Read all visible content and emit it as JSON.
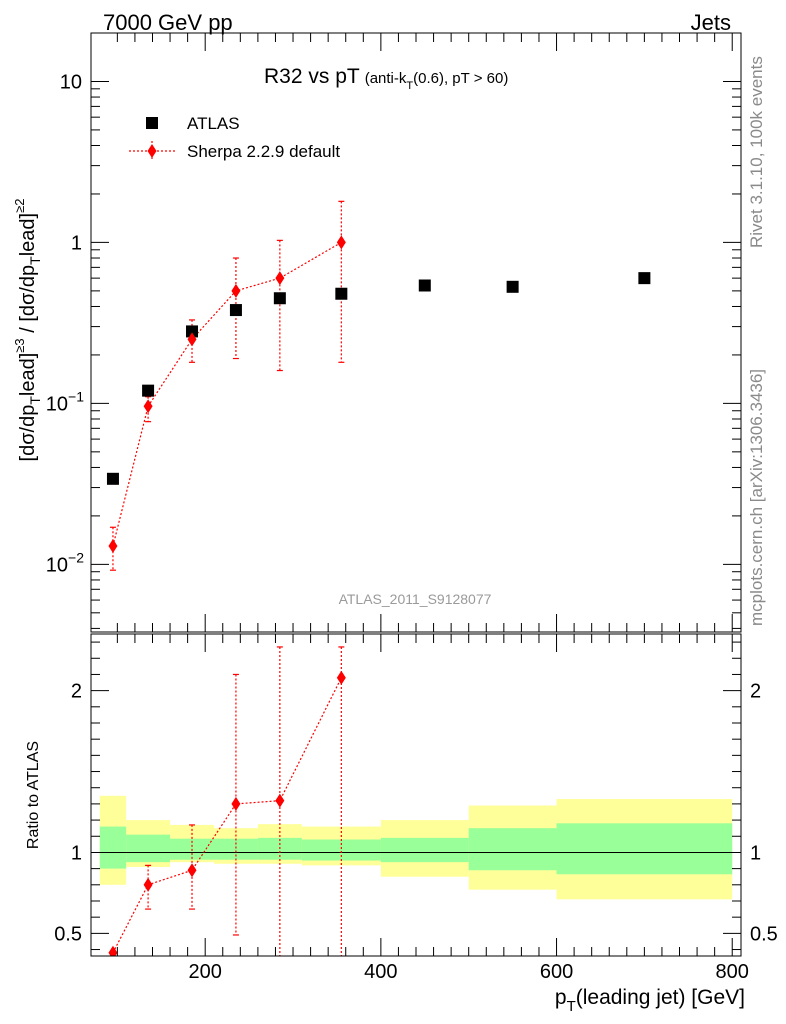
{
  "header": {
    "left": "7000 GeV pp",
    "right": "Jets"
  },
  "side_labels": {
    "rivet": "Rivet 3.1.10,  100k events",
    "mcplots": "mcplots.cern.ch [arXiv:1306.3436]"
  },
  "watermark": "ATLAS_2011_S9128077",
  "chart_data": [
    {
      "type": "scatter",
      "panel": "main",
      "title": "R32 vs pT",
      "title_suffix": "(anti-k_T(0.6), pT > 60)",
      "ylabel": "[dσ/dp_T^lead]^{≥3} / [dσ/dp_T^lead]^{≥2}",
      "yscale": "log",
      "xlim": [
        70,
        810
      ],
      "ylim": [
        0.0038,
        20
      ],
      "y_tick_labels": [
        "10^-2",
        "10^-1",
        "1",
        "10"
      ],
      "legend_position": "top-left",
      "series": [
        {
          "name": "ATLAS",
          "color": "#000000",
          "marker": "square",
          "x": [
            95,
            135,
            185,
            235,
            285,
            355,
            450,
            550,
            700
          ],
          "y": [
            0.034,
            0.12,
            0.28,
            0.38,
            0.45,
            0.48,
            0.54,
            0.53,
            0.6
          ]
        },
        {
          "name": "Sherpa 2.2.9 default",
          "color": "#ff0000",
          "marker": "diamond",
          "line": "dotted",
          "x": [
            95,
            135,
            185,
            235,
            285,
            355
          ],
          "y": [
            0.013,
            0.096,
            0.25,
            0.5,
            0.6,
            1.0
          ],
          "ylow": [
            0.0092,
            0.077,
            0.18,
            0.19,
            0.16,
            0.18
          ],
          "yhigh": [
            0.017,
            0.11,
            0.33,
            0.8,
            1.03,
            1.8
          ]
        }
      ]
    },
    {
      "type": "scatter",
      "panel": "ratio",
      "ylabel": "Ratio to ATLAS",
      "xlabel": "p_T(leading jet) [GeV]",
      "xlim": [
        70,
        810
      ],
      "ylim": [
        0.36,
        2.35
      ],
      "y_tick_labels": [
        "0.5",
        "1",
        "2"
      ],
      "x_tick_labels": [
        "200",
        "400",
        "600",
        "800"
      ],
      "reference_line": 1,
      "bands": {
        "edges": [
          80,
          110,
          160,
          210,
          260,
          310,
          400,
          500,
          600,
          800
        ],
        "inner": [
          [
            0.9,
            1.16
          ],
          [
            0.94,
            1.11
          ],
          [
            0.955,
            1.085
          ],
          [
            0.955,
            1.085
          ],
          [
            0.955,
            1.09
          ],
          [
            0.95,
            1.08
          ],
          [
            0.94,
            1.09
          ],
          [
            0.89,
            1.15
          ],
          [
            0.865,
            1.18
          ]
        ],
        "outer": [
          [
            0.8,
            1.35
          ],
          [
            0.91,
            1.2
          ],
          [
            0.94,
            1.17
          ],
          [
            0.93,
            1.15
          ],
          [
            0.93,
            1.175
          ],
          [
            0.92,
            1.16
          ],
          [
            0.85,
            1.2
          ],
          [
            0.77,
            1.29
          ],
          [
            0.71,
            1.33
          ]
        ],
        "inner_color": "#99ff99",
        "outer_color": "#ffff99"
      },
      "series": [
        {
          "name": "Sherpa 2.2.9 default",
          "color": "#ff0000",
          "marker": "diamond",
          "line": "dotted",
          "x": [
            95,
            135,
            185,
            235,
            285,
            355
          ],
          "y": [
            0.38,
            0.8,
            0.89,
            1.3,
            1.32,
            2.08
          ],
          "ylow": [
            null,
            0.65,
            0.65,
            0.49,
            0.34,
            0.34
          ],
          "yhigh": [
            null,
            0.92,
            1.17,
            2.1,
            2.27,
            2.27
          ]
        }
      ]
    }
  ]
}
